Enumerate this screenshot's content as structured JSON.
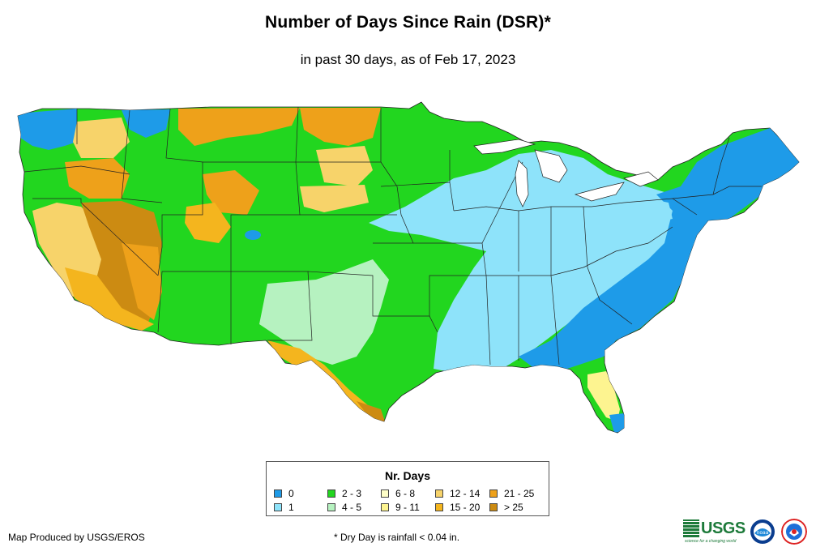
{
  "title": "Number of Days Since Rain (DSR)*",
  "subtitle": "in past 30 days, as of Feb 17, 2023",
  "legend": {
    "title": "Nr. Days",
    "items": [
      {
        "label": "0",
        "color": "#1e9be8"
      },
      {
        "label": "1",
        "color": "#8ee3fa"
      },
      {
        "label": "2 - 3",
        "color": "#22d61f"
      },
      {
        "label": "4 - 5",
        "color": "#b6f2c0"
      },
      {
        "label": "6 - 8",
        "color": "#ffffc8"
      },
      {
        "label": "9 - 11",
        "color": "#fdf490"
      },
      {
        "label": "12 - 14",
        "color": "#f7d36a"
      },
      {
        "label": "15 - 20",
        "color": "#f4b51e"
      },
      {
        "label": "21 - 25",
        "color": "#eea11a"
      },
      {
        "label": "> 25",
        "color": "#cc8b12"
      }
    ]
  },
  "credit": "Map Produced by USGS/EROS",
  "footnote": "* Dry Day is rainfall < 0.04 in.",
  "logos": {
    "usgs_text": "USGS",
    "usgs_tagline": "science for a changing world",
    "noaa_text": "noaa"
  }
}
